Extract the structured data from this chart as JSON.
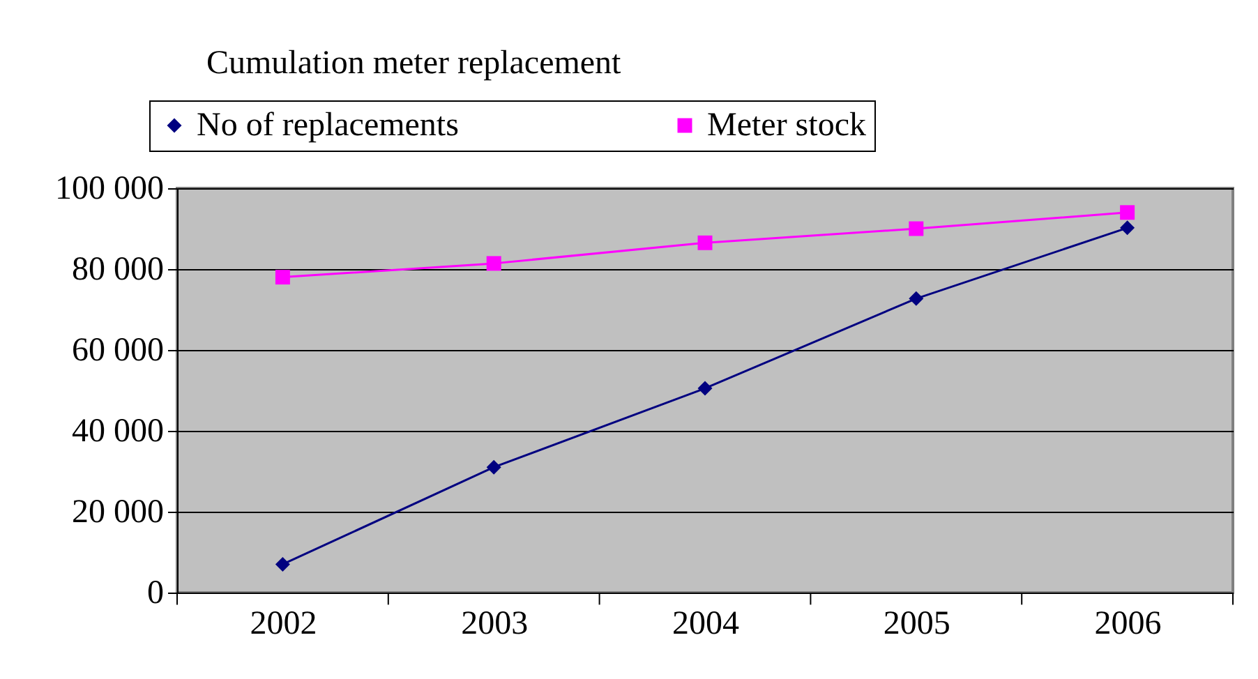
{
  "chart_data": {
    "type": "line",
    "title": "Cumulation meter replacement",
    "categories": [
      "2002",
      "2003",
      "2004",
      "2005",
      "2006"
    ],
    "series": [
      {
        "name": "No of replacements",
        "color": "#000080",
        "marker": "diamond",
        "values": [
          7000,
          31000,
          50500,
          72700,
          90200
        ]
      },
      {
        "name": "Meter stock",
        "color": "#ff00ff",
        "marker": "square",
        "values": [
          78000,
          81400,
          86500,
          90000,
          94000
        ]
      }
    ],
    "ylim": [
      0,
      100000
    ],
    "yticks": [
      0,
      {
        "value": 20000,
        "label": "20  000"
      },
      {
        "value": 40000,
        "label": "40  000"
      },
      {
        "value": 60000,
        "label": "60  000"
      },
      {
        "value": 80000,
        "label": "80  000"
      },
      {
        "value": 100000,
        "label": "100  000"
      }
    ],
    "grid": "y",
    "legend": "top"
  }
}
